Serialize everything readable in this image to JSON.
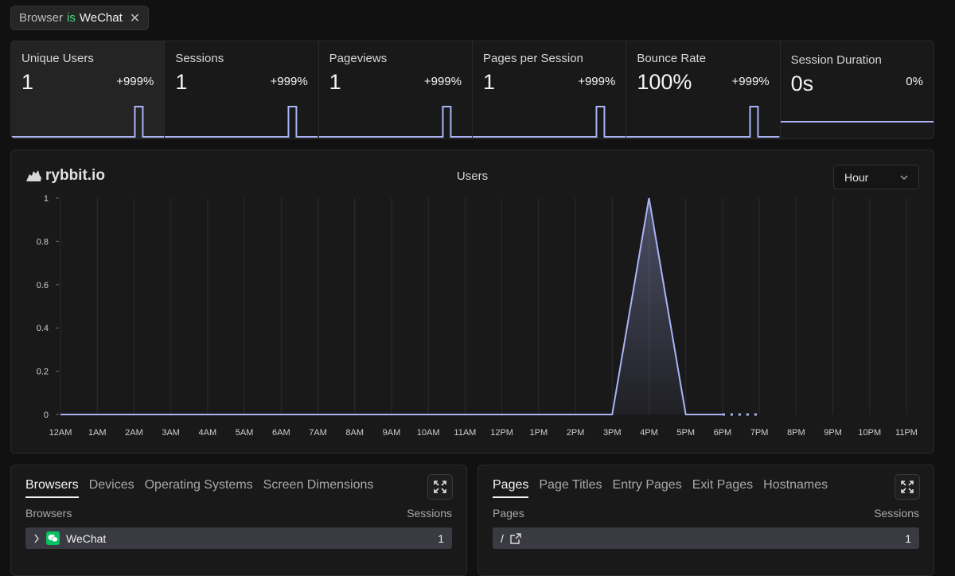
{
  "filter": {
    "field": "Browser",
    "operator": "is",
    "value": "WeChat"
  },
  "stats": [
    {
      "label": "Unique Users",
      "value": "1",
      "change": "+999%"
    },
    {
      "label": "Sessions",
      "value": "1",
      "change": "+999%"
    },
    {
      "label": "Pageviews",
      "value": "1",
      "change": "+999%"
    },
    {
      "label": "Pages per Session",
      "value": "1",
      "change": "+999%"
    },
    {
      "label": "Bounce Rate",
      "value": "100%",
      "change": "+999%"
    },
    {
      "label": "Session Duration",
      "value": "0s",
      "change": "0%"
    }
  ],
  "chart": {
    "logo": "rybbit.io",
    "title": "Users",
    "granularity": "Hour"
  },
  "chart_data": {
    "type": "area",
    "title": "Users",
    "categories": [
      "12AM",
      "1AM",
      "2AM",
      "3AM",
      "4AM",
      "5AM",
      "6AM",
      "7AM",
      "8AM",
      "9AM",
      "10AM",
      "11AM",
      "12PM",
      "1PM",
      "2PM",
      "3PM",
      "4PM",
      "5PM",
      "6PM",
      "7PM",
      "8PM",
      "9PM",
      "10PM",
      "11PM"
    ],
    "values": [
      0,
      0,
      0,
      0,
      0,
      0,
      0,
      0,
      0,
      0,
      0,
      0,
      0,
      0,
      0,
      0,
      1,
      0,
      0,
      null,
      null,
      null,
      null,
      null
    ],
    "projected_from": "6PM",
    "projected_to": "7PM",
    "yticks": [
      "0",
      "0.2",
      "0.4",
      "0.6",
      "0.8",
      "1"
    ],
    "ylim": [
      0,
      1
    ],
    "color": "#aab4f5"
  },
  "browsers_panel": {
    "tabs": [
      "Browsers",
      "Devices",
      "Operating Systems",
      "Screen Dimensions"
    ],
    "col_label": "Browsers",
    "col_value": "Sessions",
    "rows": [
      {
        "name": "WeChat",
        "value": "1"
      }
    ]
  },
  "pages_panel": {
    "tabs": [
      "Pages",
      "Page Titles",
      "Entry Pages",
      "Exit Pages",
      "Hostnames"
    ],
    "col_label": "Pages",
    "col_value": "Sessions",
    "rows": [
      {
        "name": "/",
        "value": "1"
      }
    ]
  }
}
